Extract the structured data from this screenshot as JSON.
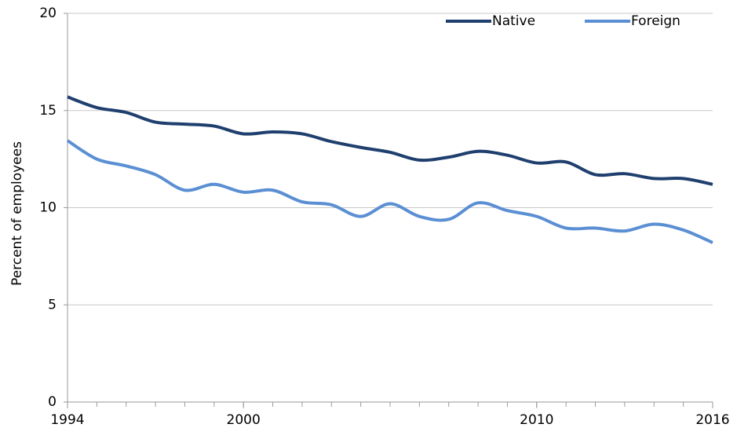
{
  "chart_data": {
    "type": "line",
    "y_label": "Percent of employees",
    "x": [
      1994,
      1995,
      1996,
      1997,
      1998,
      1999,
      2000,
      2001,
      2002,
      2003,
      2004,
      2005,
      2006,
      2007,
      2008,
      2009,
      2010,
      2011,
      2012,
      2013,
      2014,
      2015,
      2016
    ],
    "series": [
      {
        "name": "Native",
        "color": "#1f3f6e",
        "values": [
          15.7,
          15.15,
          14.9,
          14.4,
          14.3,
          14.2,
          13.8,
          13.9,
          13.8,
          13.4,
          13.1,
          12.85,
          12.45,
          12.6,
          12.9,
          12.7,
          12.3,
          12.35,
          11.7,
          11.75,
          11.5,
          11.5,
          11.2
        ]
      },
      {
        "name": "Foreign",
        "color": "#5b8fd3",
        "values": [
          13.45,
          12.5,
          12.15,
          11.7,
          10.9,
          11.2,
          10.8,
          10.9,
          10.3,
          10.15,
          9.55,
          10.2,
          9.55,
          9.4,
          10.25,
          9.85,
          9.55,
          8.95,
          8.95,
          8.8,
          9.15,
          8.85,
          8.2
        ]
      }
    ],
    "xlim": [
      1994,
      2016
    ],
    "xticks": [
      1994,
      2000,
      2010,
      2016
    ],
    "ylim": [
      0,
      20
    ],
    "yticks": [
      0,
      5,
      10,
      15,
      20
    ],
    "grid": true,
    "legend": "top-right"
  }
}
